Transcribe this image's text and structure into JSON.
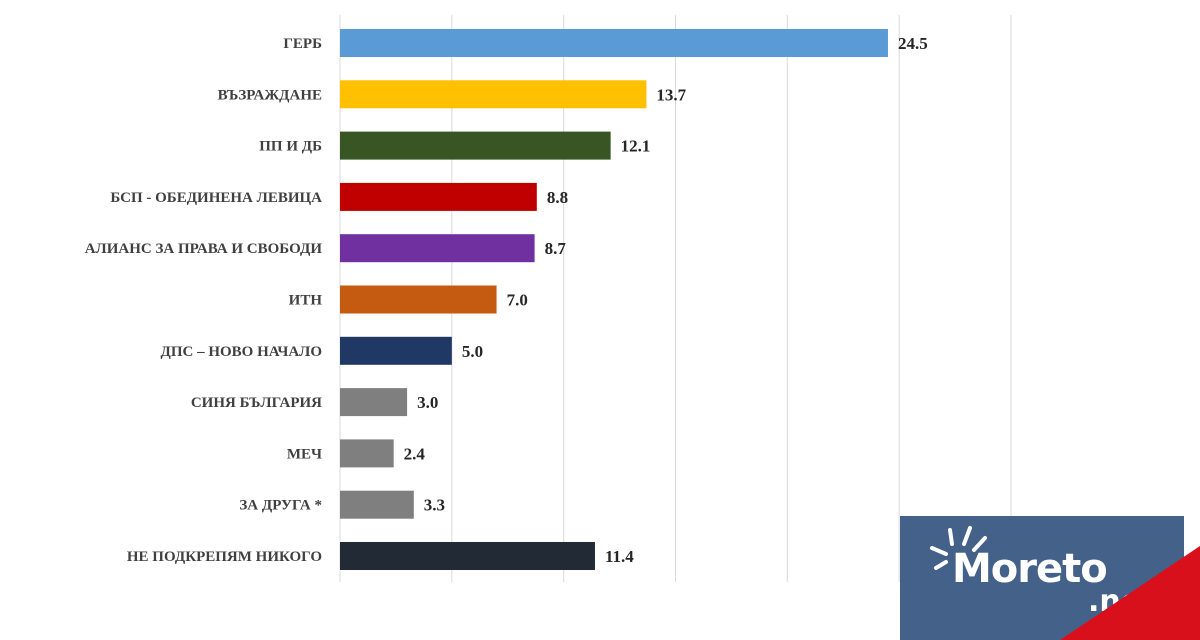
{
  "chart_data": {
    "type": "bar",
    "orientation": "horizontal",
    "categories": [
      "ГЕРБ",
      "ВЪЗРАЖДАНЕ",
      "ПП И ДБ",
      "БСП - ОБЕДИНЕНА ЛЕВИЦА",
      "АЛИАНС ЗА ПРАВА И СВОБОДИ",
      "ИТН",
      "ДПС – НОВО НАЧАЛО",
      "СИНЯ БЪЛГАРИЯ",
      "МЕЧ",
      "ЗА ДРУГА *",
      "НЕ ПОДКРЕПЯМ НИКОГО"
    ],
    "values": [
      24.5,
      13.7,
      12.1,
      8.8,
      8.7,
      7.0,
      5.0,
      3.0,
      2.4,
      3.3,
      11.4
    ],
    "value_labels": [
      "24.5",
      "13.7",
      "12.1",
      "8.8",
      "8.7",
      "7.0",
      "5.0",
      "3.0",
      "2.4",
      "3.3",
      "11.4"
    ],
    "colors": [
      "#5b9bd5",
      "#ffc000",
      "#375623",
      "#c00000",
      "#7030a0",
      "#c55a11",
      "#1f3864",
      "#7f7f7f",
      "#7f7f7f",
      "#7f7f7f",
      "#222a35"
    ],
    "xlim": [
      0,
      30
    ],
    "grid": true,
    "grid_step": 5
  },
  "watermark": {
    "text": "Moreto.net"
  }
}
